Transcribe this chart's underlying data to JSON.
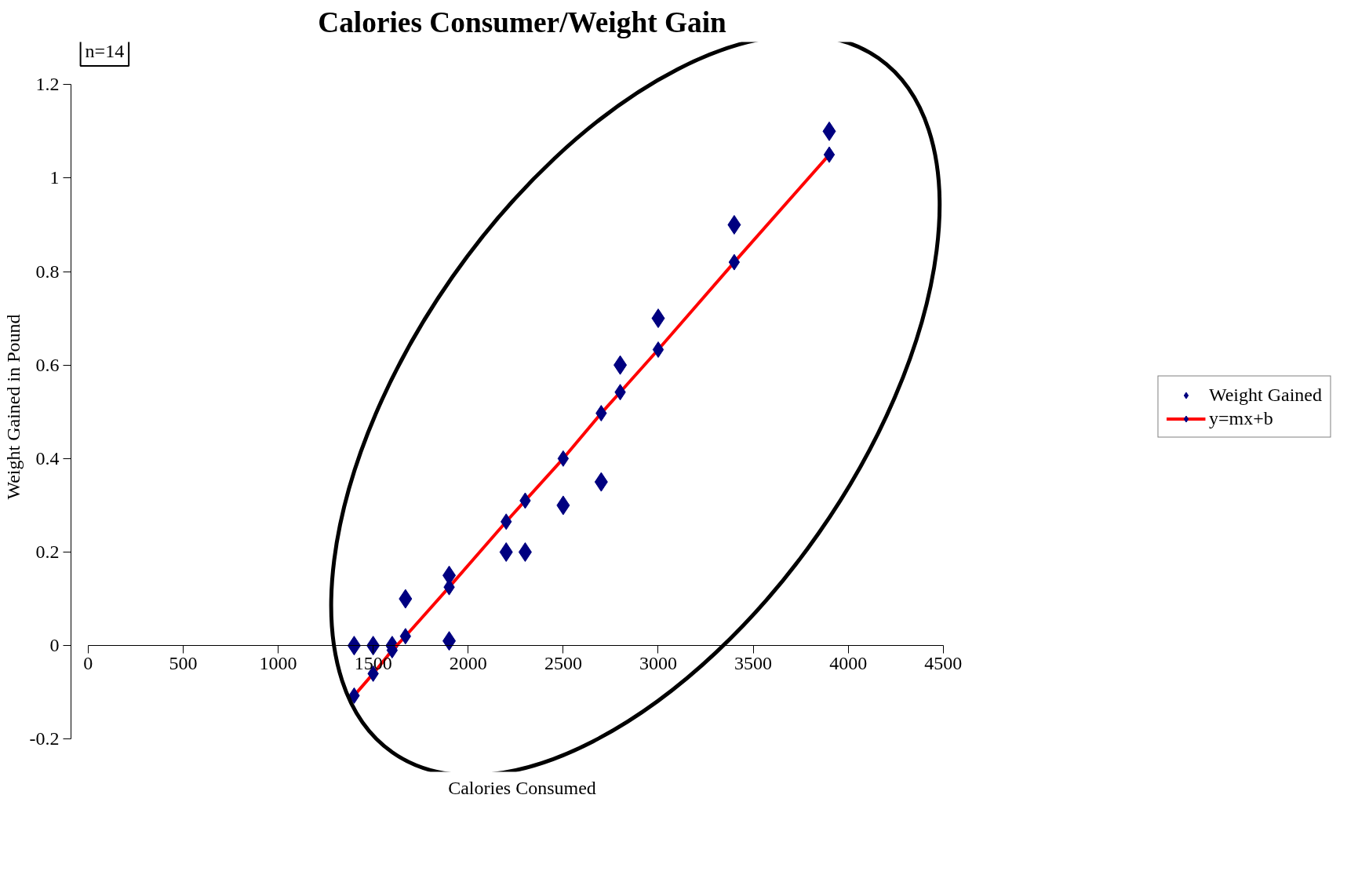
{
  "chart_data": {
    "type": "scatter",
    "title": "Calories Consumer/Weight Gain",
    "xlabel": "Calories Consumed",
    "ylabel": "Weight Gained in Pound",
    "annotations": [
      "n=14"
    ],
    "series": [
      {
        "name": "Weight Gained",
        "color": "#000080",
        "x": [
          1400,
          1500,
          1600,
          1670,
          1900,
          1900,
          2200,
          2300,
          2500,
          2700,
          2800,
          3000,
          3400,
          3900
        ],
        "values": [
          0,
          0,
          0,
          0.1,
          0.15,
          0.01,
          0.2,
          0.2,
          0.3,
          0.35,
          0.6,
          0.7,
          0.9,
          1.1
        ]
      },
      {
        "name": "y=mx+b",
        "type": "line",
        "color": "#ff0000",
        "colors": [
          "#000080",
          "#000080",
          "#000080",
          "#000080",
          "#000080",
          "#000080",
          "#000080",
          "#000080",
          "#000080",
          "#000080",
          "#000080",
          "#000080",
          "#000080"
        ],
        "x": [
          1400,
          1500,
          1600,
          1670,
          1900,
          2200,
          2300,
          2500,
          2700,
          2800,
          3000,
          3400,
          3900
        ],
        "values": [
          -0.107,
          -0.06,
          -0.01,
          0.02,
          0.125,
          0.265,
          0.31,
          0.4,
          0.497,
          0.542,
          0.633,
          0.82,
          1.05
        ]
      }
    ],
    "xlim": [
      0,
      4500
    ],
    "xticks": [
      0,
      500,
      1000,
      1500,
      2000,
      2500,
      3000,
      3500,
      4000,
      4500
    ],
    "ylim": [
      -0.2,
      1.2
    ],
    "yticks": [
      -0.2,
      0,
      0.2,
      0.4,
      0.6,
      0.8,
      1,
      1.2
    ],
    "marker": "diamond",
    "grid": false,
    "legend": "right"
  }
}
